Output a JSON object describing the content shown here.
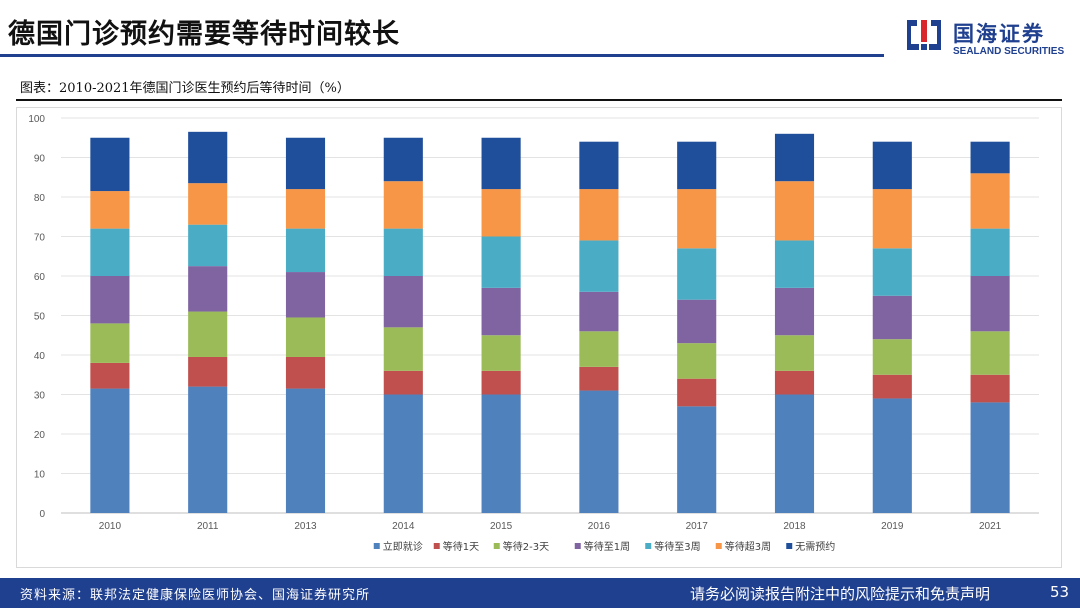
{
  "header": {
    "title": "德国门诊预约需要等待时间较长",
    "logo_name": "国海证券",
    "logo_sub": "SEALAND SECURITIES"
  },
  "caption": "图表：2010-2021年德国门诊医生预约后等待时间（%）",
  "footer": {
    "source": "资料来源：联邦法定健康保险医师协会、国海证券研究所",
    "disclaimer": "请务必阅读报告附注中的风险提示和免责声明",
    "page": "53"
  },
  "colors": {
    "brand": "#1f3f8f",
    "series": [
      "#4f81bd",
      "#c0504d",
      "#9bbb59",
      "#8064a2",
      "#4bacc6",
      "#f79646",
      "#1f4e9a"
    ]
  },
  "chart_data": {
    "type": "bar",
    "stacked": true,
    "title": "",
    "xlabel": "",
    "ylabel": "",
    "ylim": [
      0,
      100
    ],
    "yticks": [
      0,
      10,
      20,
      30,
      40,
      50,
      60,
      70,
      80,
      90,
      100
    ],
    "categories": [
      "2010",
      "2011",
      "2013",
      "2014",
      "2015",
      "2016",
      "2017",
      "2018",
      "2019",
      "2021"
    ],
    "legend_position": "bottom",
    "series": [
      {
        "name": "立即就诊",
        "values": [
          31.5,
          32,
          31.5,
          30,
          30,
          31,
          27,
          30,
          29,
          28
        ]
      },
      {
        "name": "等待1天",
        "values": [
          6.5,
          7.5,
          8,
          6,
          6,
          6,
          7,
          6,
          6,
          7
        ]
      },
      {
        "name": "等待2-3天",
        "values": [
          10,
          11.5,
          10,
          11,
          9,
          9,
          9,
          9,
          9,
          11
        ]
      },
      {
        "name": "等待至1周",
        "values": [
          12,
          11.5,
          11.5,
          13,
          12,
          10,
          11,
          12,
          11,
          14
        ]
      },
      {
        "name": "等待至3周",
        "values": [
          12,
          10.5,
          11,
          12,
          13,
          13,
          13,
          12,
          12,
          12
        ]
      },
      {
        "name": "等待超3周",
        "values": [
          9.5,
          10.5,
          10,
          12,
          12,
          13,
          15,
          15,
          15,
          14
        ]
      },
      {
        "name": "无需预约",
        "values": [
          13.5,
          13,
          13,
          11,
          13,
          12,
          12,
          12,
          12,
          8
        ]
      }
    ]
  }
}
